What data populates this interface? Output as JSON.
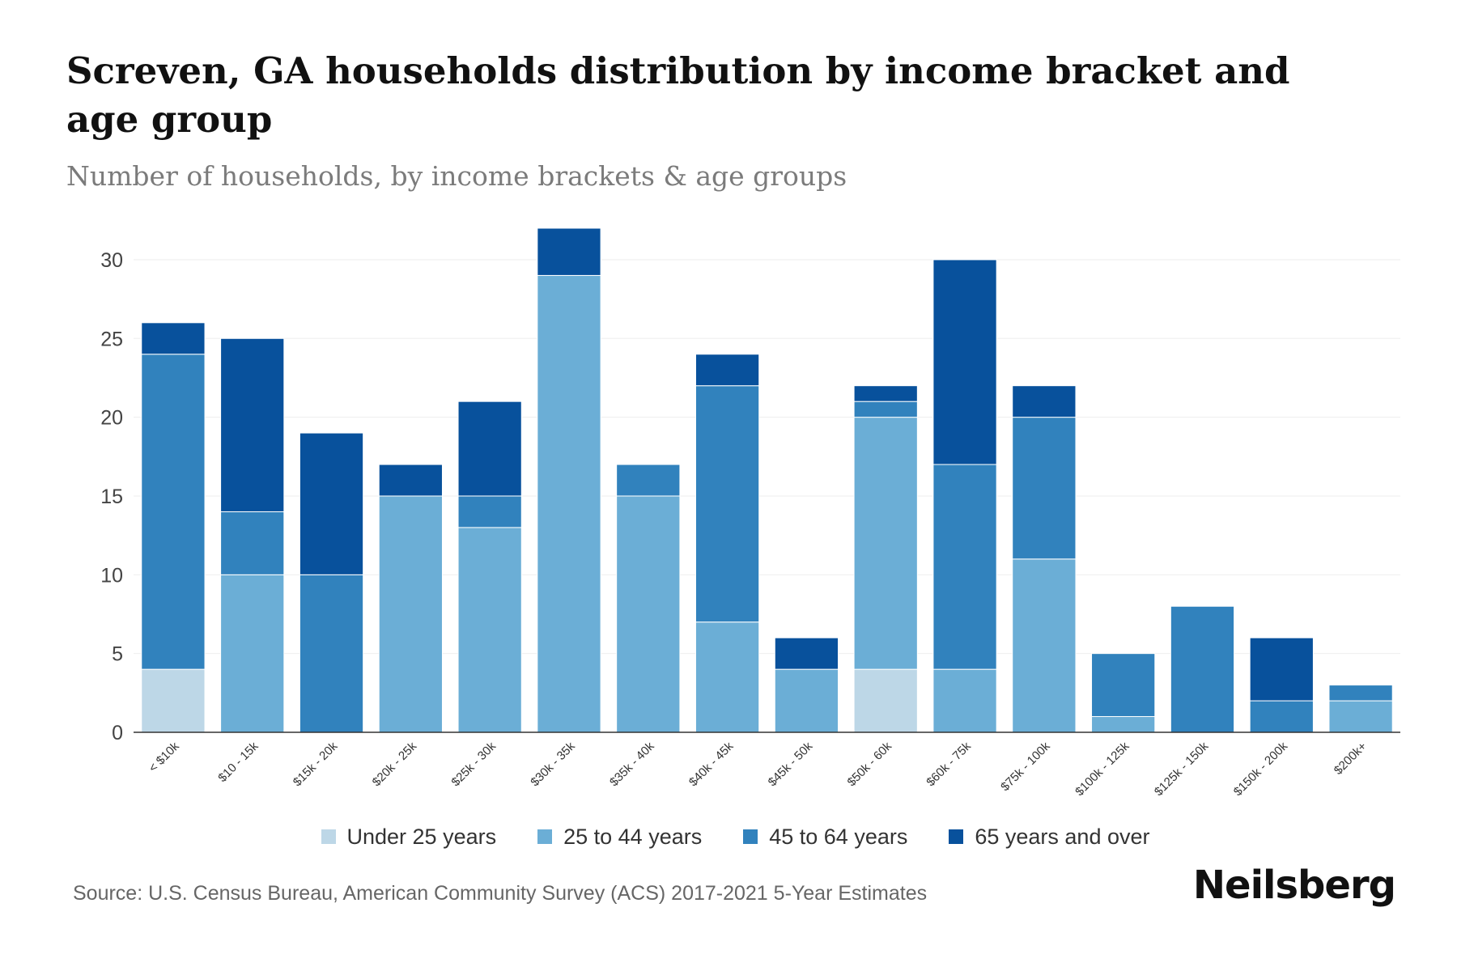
{
  "chart_data": {
    "type": "bar",
    "stacked": true,
    "title": "Screven, GA households distribution by income bracket and age group",
    "subtitle": "Number of households, by income brackets & age groups",
    "xlabel": "",
    "ylabel": "",
    "ylim": [
      0,
      32
    ],
    "yticks": [
      0,
      5,
      10,
      15,
      20,
      25,
      30
    ],
    "grid": true,
    "legend_position": "bottom",
    "categories": [
      "< $10k",
      "$10 - 15k",
      "$15k - 20k",
      "$20k - 25k",
      "$25k - 30k",
      "$30k - 35k",
      "$35k - 40k",
      "$40k - 45k",
      "$45k - 50k",
      "$50k - 60k",
      "$60k - 75k",
      "$75k - 100k",
      "$100k - 125k",
      "$125k - 150k",
      "$150k - 200k",
      "$200k+"
    ],
    "series": [
      {
        "name": "Under 25 years",
        "color": "#bdd7e7",
        "values": [
          4,
          0,
          0,
          0,
          0,
          0,
          0,
          0,
          0,
          4,
          0,
          0,
          0,
          0,
          0,
          0
        ]
      },
      {
        "name": "25 to 44 years",
        "color": "#6baed6",
        "values": [
          0,
          10,
          0,
          15,
          13,
          29,
          15,
          7,
          4,
          16,
          4,
          11,
          1,
          0,
          0,
          2
        ]
      },
      {
        "name": "45 to 64 years",
        "color": "#3182bd",
        "values": [
          20,
          4,
          10,
          0,
          2,
          0,
          2,
          15,
          0,
          1,
          13,
          9,
          4,
          8,
          2,
          1
        ]
      },
      {
        "name": "65 years and over",
        "color": "#08519c",
        "values": [
          2,
          11,
          9,
          2,
          6,
          3,
          0,
          2,
          2,
          1,
          13,
          2,
          0,
          0,
          4,
          0
        ]
      }
    ]
  },
  "source": "Source: U.S. Census Bureau, American Community Survey (ACS) 2017-2021 5-Year Estimates",
  "brand": "Neilsberg",
  "colors": {
    "grid": "#eeeeee",
    "axis": "#333333",
    "bar_edge": "#ffffff"
  }
}
